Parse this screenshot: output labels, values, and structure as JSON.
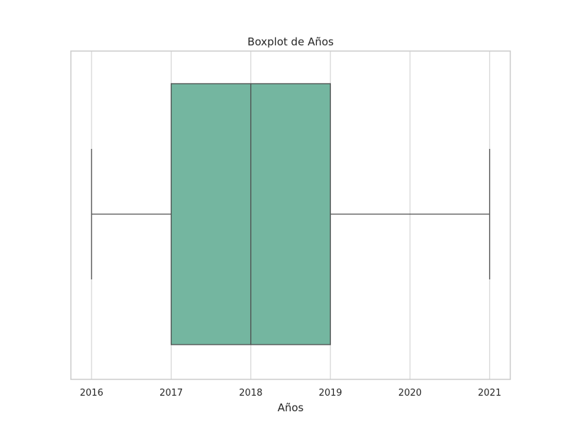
{
  "chart_data": {
    "type": "box",
    "title": "Boxplot de Años",
    "xlabel": "Años",
    "ylabel": "",
    "orientation": "horizontal",
    "xlim": [
      2015.74,
      2021.26
    ],
    "ticks": [
      2016,
      2017,
      2018,
      2019,
      2020,
      2021
    ],
    "tick_labels": [
      "2016",
      "2017",
      "2018",
      "2019",
      "2020",
      "2021"
    ],
    "grid": true,
    "box": {
      "min": 2016,
      "q1": 2017,
      "median": 2018,
      "q3": 2019,
      "max": 2021
    },
    "colors": {
      "box_fill": "#74b6a0",
      "line": "#4d4d4d",
      "grid": "#d5d5d5",
      "frame": "#cccccc"
    }
  }
}
